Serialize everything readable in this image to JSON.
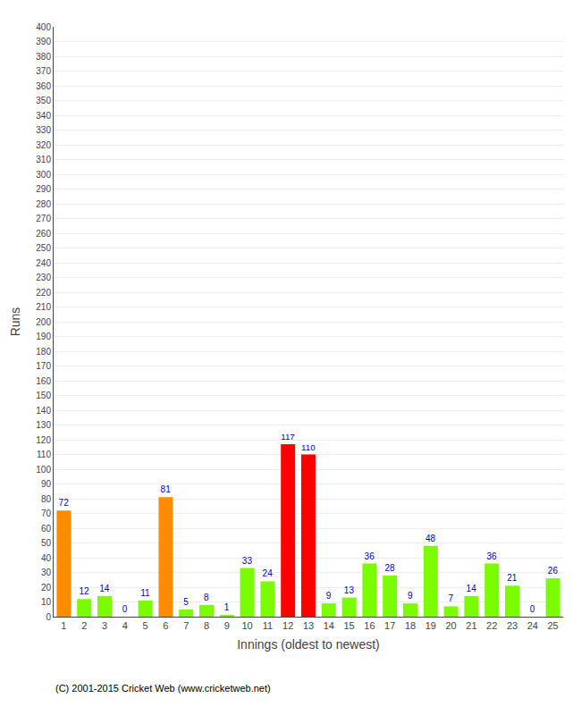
{
  "chart_data": {
    "type": "bar",
    "xlabel": "Innings (oldest to newest)",
    "ylabel": "Runs",
    "categories": [
      "1",
      "2",
      "3",
      "4",
      "5",
      "6",
      "7",
      "8",
      "9",
      "10",
      "11",
      "12",
      "13",
      "14",
      "15",
      "16",
      "17",
      "18",
      "19",
      "20",
      "21",
      "22",
      "23",
      "24",
      "25"
    ],
    "values": [
      72,
      12,
      14,
      0,
      11,
      81,
      5,
      8,
      1,
      33,
      24,
      117,
      110,
      9,
      13,
      36,
      28,
      9,
      48,
      7,
      14,
      36,
      21,
      0,
      26
    ],
    "colors": [
      "#ff8c00",
      "#7cfc00",
      "#7cfc00",
      "#7cfc00",
      "#7cfc00",
      "#ff8c00",
      "#7cfc00",
      "#7cfc00",
      "#7cfc00",
      "#7cfc00",
      "#7cfc00",
      "#ff0000",
      "#ff0000",
      "#7cfc00",
      "#7cfc00",
      "#7cfc00",
      "#7cfc00",
      "#7cfc00",
      "#7cfc00",
      "#7cfc00",
      "#7cfc00",
      "#7cfc00",
      "#7cfc00",
      "#7cfc00",
      "#7cfc00"
    ],
    "ylim": [
      0,
      400
    ],
    "yticks": [
      0,
      10,
      20,
      30,
      40,
      50,
      60,
      70,
      80,
      90,
      100,
      110,
      120,
      130,
      140,
      150,
      160,
      170,
      180,
      190,
      200,
      210,
      220,
      230,
      240,
      250,
      260,
      270,
      280,
      290,
      300,
      310,
      320,
      330,
      340,
      350,
      360,
      370,
      380,
      390,
      400
    ],
    "grid": true,
    "data_labels": true,
    "annotations": [
      "(C) 2001-2015 Cricket Web (www.cricketweb.net)"
    ]
  }
}
